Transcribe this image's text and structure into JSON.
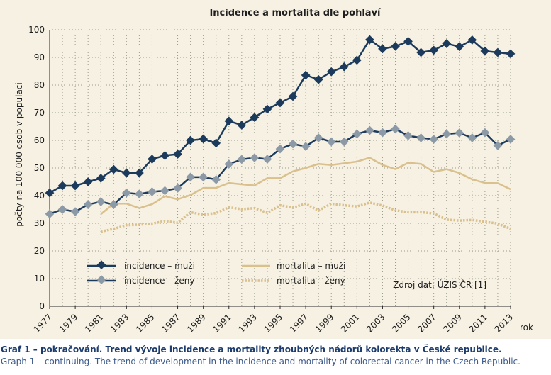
{
  "chart_data": {
    "type": "line",
    "title": "Incidence a mortalita dle pohlaví",
    "ylabel": "počty na 100 000 osob v populaci",
    "xlabel": "rok",
    "ylim": [
      0,
      100
    ],
    "yticks": [
      0,
      10,
      20,
      30,
      40,
      50,
      60,
      70,
      80,
      90,
      100
    ],
    "xlim": [
      1977,
      2013
    ],
    "xticks": [
      "1977",
      "1979",
      "1981",
      "1983",
      "1985",
      "1987",
      "1989",
      "1991",
      "1993",
      "1995",
      "1997",
      "1999",
      "2001",
      "2003",
      "2005",
      "2007",
      "2009",
      "2011",
      "2013"
    ],
    "grid": "dotted",
    "legend_position": "bottom",
    "source_note": "Zdroj dat: ÚZIS ČR [1]",
    "series": [
      {
        "name": "incidence – muži",
        "style": "line-diamond",
        "color": "#1b3a5c",
        "x": [
          1977,
          1978,
          1979,
          1980,
          1981,
          1982,
          1983,
          1984,
          1985,
          1986,
          1987,
          1988,
          1989,
          1990,
          1991,
          1992,
          1993,
          1994,
          1995,
          1996,
          1997,
          1998,
          1999,
          2000,
          2001,
          2002,
          2003,
          2004,
          2005,
          2006,
          2007,
          2008,
          2009,
          2010,
          2011,
          2012,
          2013
        ],
        "values": [
          41.0,
          43.6,
          43.6,
          45.0,
          46.3,
          49.5,
          48.2,
          48.2,
          53.2,
          54.5,
          55.0,
          60.0,
          60.5,
          59.0,
          67.0,
          65.5,
          68.3,
          71.3,
          73.6,
          75.9,
          83.6,
          82.0,
          84.8,
          86.6,
          89.0,
          96.4,
          93.1,
          94.0,
          95.8,
          91.8,
          92.6,
          95.0,
          93.9,
          96.3,
          92.3,
          91.8,
          91.3
        ]
      },
      {
        "name": "incidence – ženy",
        "style": "line-diamond",
        "color": "#8c9aa8",
        "x": [
          1977,
          1978,
          1979,
          1980,
          1981,
          1982,
          1983,
          1984,
          1985,
          1986,
          1987,
          1988,
          1989,
          1990,
          1991,
          1992,
          1993,
          1994,
          1995,
          1996,
          1997,
          1998,
          1999,
          2000,
          2001,
          2002,
          2003,
          2004,
          2005,
          2006,
          2007,
          2008,
          2009,
          2010,
          2011,
          2012,
          2013
        ],
        "values": [
          33.4,
          35.0,
          34.2,
          36.8,
          37.8,
          36.8,
          41.0,
          40.6,
          41.4,
          41.8,
          42.7,
          46.7,
          46.7,
          45.8,
          51.4,
          53.1,
          53.7,
          53.2,
          56.9,
          58.7,
          57.8,
          60.9,
          59.5,
          59.5,
          62.3,
          63.6,
          62.8,
          64.1,
          61.7,
          60.9,
          60.4,
          62.3,
          62.7,
          60.9,
          62.8,
          58.1,
          60.4
        ]
      },
      {
        "name": "mortalita – muži",
        "style": "line",
        "color": "#d9c08c",
        "x": [
          1981,
          1982,
          1983,
          1984,
          1985,
          1986,
          1987,
          1988,
          1989,
          1990,
          1991,
          1992,
          1993,
          1994,
          1995,
          1996,
          1997,
          1998,
          1999,
          2000,
          2001,
          2002,
          2003,
          2004,
          2005,
          2006,
          2007,
          2008,
          2009,
          2010,
          2011,
          2012,
          2013
        ],
        "values": [
          33.3,
          37.1,
          37.1,
          35.5,
          36.9,
          39.8,
          38.7,
          40.2,
          42.8,
          42.8,
          44.6,
          44.1,
          43.7,
          46.3,
          46.3,
          48.8,
          50.0,
          51.5,
          51.1,
          51.7,
          52.3,
          53.7,
          51.1,
          49.6,
          51.9,
          51.5,
          48.6,
          49.6,
          48.2,
          45.9,
          44.6,
          44.5,
          42.3
        ]
      },
      {
        "name": "mortalita – ženy",
        "style": "dotted",
        "color": "#d9c08c",
        "x": [
          1981,
          1982,
          1983,
          1984,
          1985,
          1986,
          1987,
          1988,
          1989,
          1990,
          1991,
          1992,
          1993,
          1994,
          1995,
          1996,
          1997,
          1998,
          1999,
          2000,
          2001,
          2002,
          2003,
          2004,
          2005,
          2006,
          2007,
          2008,
          2009,
          2010,
          2011,
          2012,
          2013
        ],
        "values": [
          27.0,
          28.0,
          29.3,
          29.5,
          29.9,
          30.8,
          30.2,
          34.0,
          33.1,
          33.7,
          35.8,
          35.1,
          35.5,
          33.8,
          36.5,
          35.7,
          37.1,
          34.6,
          37.1,
          36.5,
          36.1,
          37.5,
          36.4,
          34.7,
          34.0,
          34.0,
          33.6,
          31.3,
          31.0,
          31.2,
          30.6,
          29.9,
          28.0
        ]
      }
    ]
  },
  "caption": {
    "line1": "Graf 1 – pokračování. Trend vývoje incidence a mortality zhoubných nádorů kolorekta v České republice.",
    "line2": "Graph 1 – continuing. The trend of development in the incidence and mortality of colorectal cancer in the Czech Republic."
  }
}
